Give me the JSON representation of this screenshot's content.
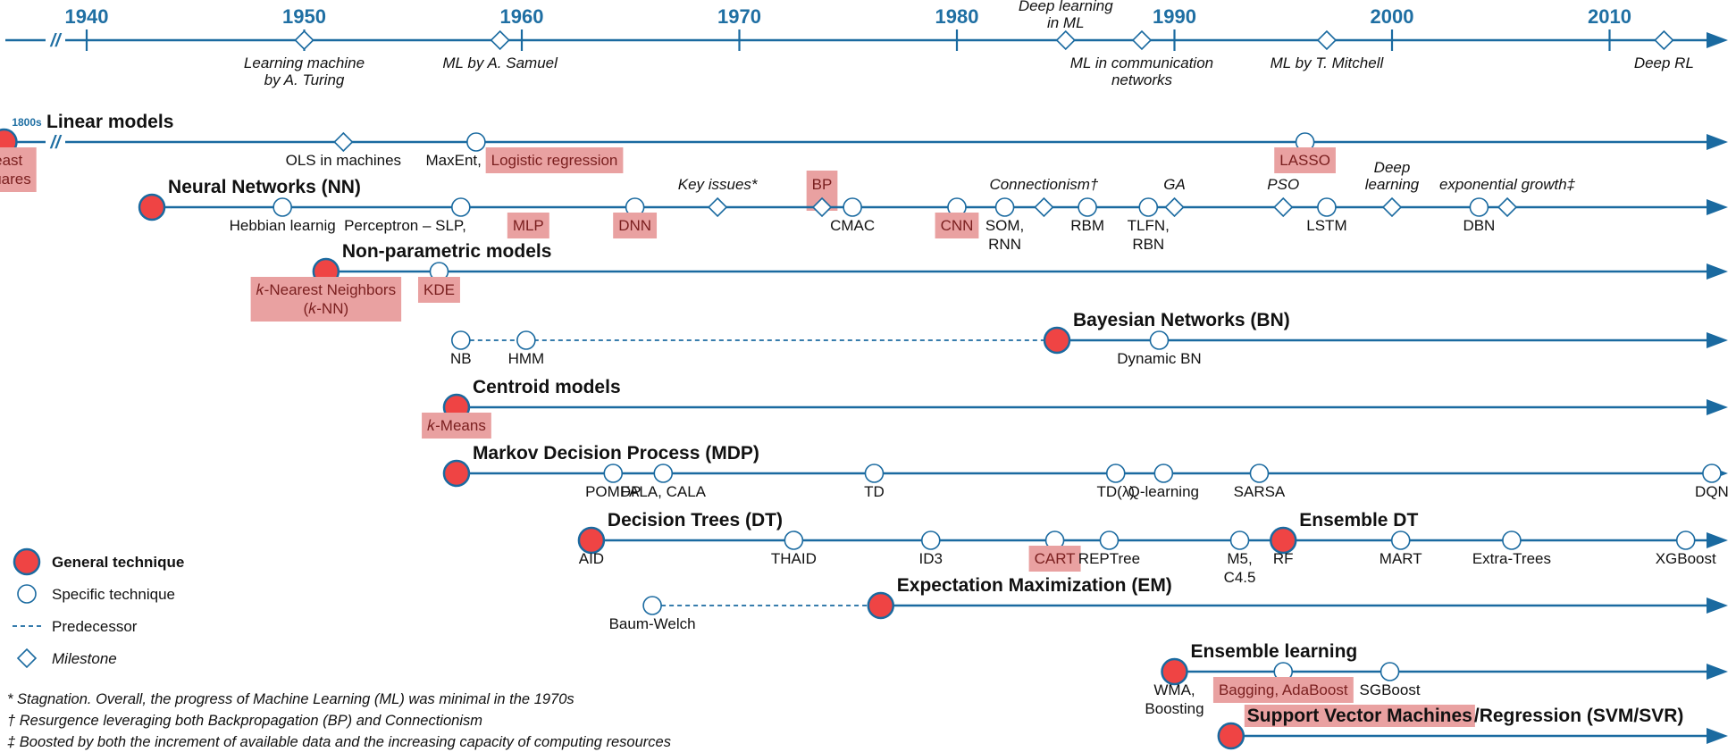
{
  "colors": {
    "axis": "#1a6aa0",
    "year_text": "#1f6fa3",
    "general_fill": "#ef4444",
    "highlight_fill": "#e9a1a1",
    "highlight_text": "#7a1f1f"
  },
  "top_axis": {
    "years": [
      "1940",
      "1950",
      "1960",
      "1970",
      "1980",
      "1990",
      "2000",
      "2010"
    ],
    "break_mark": "//",
    "milestones": [
      {
        "year": 1950.0,
        "text": [
          "Learning machine",
          "by A. Turing"
        ],
        "pos": "below"
      },
      {
        "year": 1959.0,
        "text": [
          "ML by A. Samuel"
        ],
        "pos": "below"
      },
      {
        "year": 1985.0,
        "text": [
          "Deep learning",
          "in ML"
        ],
        "pos": "above"
      },
      {
        "year": 1988.5,
        "text": [
          "ML in communication",
          "networks"
        ],
        "pos": "below"
      },
      {
        "year": 1997.0,
        "text": [
          "ML by T. Mitchell"
        ],
        "pos": "below"
      },
      {
        "year": 2012.5,
        "text": [
          "Deep RL"
        ],
        "pos": "below"
      }
    ]
  },
  "rows": [
    {
      "title": "Linear models",
      "prefix": "1800s",
      "break_mark": "//",
      "start_year": 1936.2,
      "general_year": 1936.2,
      "items": [
        {
          "kind": "general",
          "year": 1936.2,
          "text": [
            "Least",
            "squares"
          ],
          "pos": "below",
          "hl": true
        },
        {
          "kind": "milestone",
          "year": 1951.8,
          "text": [
            "OLS in machines"
          ],
          "pos": "below"
        },
        {
          "kind": "specific",
          "year": 1957.9,
          "text": [
            "MaxEnt,"
          ],
          "pos": "below-left"
        },
        {
          "kind": "label",
          "year": 1961.5,
          "text": [
            "Logistic regression"
          ],
          "pos": "below",
          "hl": true
        },
        {
          "kind": "specific",
          "year": 1996.0,
          "text": [
            "LASSO"
          ],
          "pos": "below",
          "hl": true
        }
      ]
    },
    {
      "title": "Neural Networks (NN)",
      "start_year": 1943.0,
      "items": [
        {
          "kind": "general",
          "year": 1943.0
        },
        {
          "kind": "specific",
          "year": 1949.0,
          "text": [
            "Hebbian learnig"
          ],
          "pos": "below"
        },
        {
          "kind": "specific",
          "year": 1957.2,
          "text": [
            "Perceptron – SLP,"
          ],
          "pos": "below-left"
        },
        {
          "kind": "label",
          "year": 1960.3,
          "text": [
            "MLP"
          ],
          "pos": "below",
          "hl": true
        },
        {
          "kind": "specific",
          "year": 1965.2,
          "text": [
            "DNN"
          ],
          "pos": "below",
          "hl": true
        },
        {
          "kind": "milestone",
          "year": 1969.0,
          "text": [
            "Key issues*"
          ],
          "pos": "above"
        },
        {
          "kind": "milestone",
          "year": 1973.8,
          "text": [
            "BP"
          ],
          "pos": "above",
          "hl": true
        },
        {
          "kind": "specific",
          "year": 1975.2,
          "text": [
            "CMAC"
          ],
          "pos": "below"
        },
        {
          "kind": "specific",
          "year": 1980.0,
          "text": [
            "CNN"
          ],
          "pos": "below",
          "hl": true
        },
        {
          "kind": "specific",
          "year": 1982.2,
          "text": [
            "SOM,",
            "RNN"
          ],
          "pos": "below"
        },
        {
          "kind": "milestone",
          "year": 1984.0,
          "text": [
            "Connectionism†"
          ],
          "pos": "above"
        },
        {
          "kind": "specific",
          "year": 1986.0,
          "text": [
            "RBM"
          ],
          "pos": "below"
        },
        {
          "kind": "specific",
          "year": 1988.8,
          "text": [
            "TLFN,",
            "RBN"
          ],
          "pos": "below"
        },
        {
          "kind": "milestone",
          "year": 1990.0,
          "text": [
            "GA"
          ],
          "pos": "above"
        },
        {
          "kind": "milestone",
          "year": 1995.0,
          "text": [
            "PSO"
          ],
          "pos": "above"
        },
        {
          "kind": "specific",
          "year": 1997.0,
          "text": [
            "LSTM"
          ],
          "pos": "below"
        },
        {
          "kind": "milestone",
          "year": 2000.0,
          "text": [
            "Deep",
            "learning"
          ],
          "pos": "above"
        },
        {
          "kind": "specific",
          "year": 2004.0,
          "text": [
            "DBN"
          ],
          "pos": "below"
        },
        {
          "kind": "milestone",
          "year": 2005.3,
          "text": [
            "exponential growth‡"
          ],
          "pos": "above"
        }
      ]
    },
    {
      "title": "Non-parametric models",
      "start_year": 1951.0,
      "items": [
        {
          "kind": "general",
          "year": 1951.0,
          "text": [
            "𝑘-Nearest Neighbors",
            "(𝑘-NN)"
          ],
          "pos": "below",
          "hl": true
        },
        {
          "kind": "specific",
          "year": 1956.2,
          "text": [
            "KDE"
          ],
          "pos": "below",
          "hl": true
        }
      ]
    },
    {
      "title": "Bayesian Networks (BN)",
      "start_year": 1984.6,
      "items": [
        {
          "kind": "specific",
          "year": 1957.2,
          "text": [
            "NB"
          ],
          "pos": "below"
        },
        {
          "kind": "specific",
          "year": 1960.2,
          "text": [
            "HMM"
          ],
          "pos": "below"
        },
        {
          "kind": "general",
          "year": 1984.6
        },
        {
          "kind": "specific",
          "year": 1989.3,
          "text": [
            "Dynamic BN"
          ],
          "pos": "below"
        }
      ],
      "dashed": [
        1957.2,
        1984.6
      ]
    },
    {
      "title": "Centroid models",
      "start_year": 1957.0,
      "items": [
        {
          "kind": "general",
          "year": 1957.0,
          "text": [
            "𝑘-Means"
          ],
          "pos": "below",
          "hl": true
        }
      ]
    },
    {
      "title": "Markov Decision Process (MDP)",
      "start_year": 1957.0,
      "items": [
        {
          "kind": "general",
          "year": 1957.0
        },
        {
          "kind": "specific",
          "year": 1964.2,
          "text": [
            "POMDP"
          ],
          "pos": "below"
        },
        {
          "kind": "specific",
          "year": 1966.5,
          "text": [
            "FALA, CALA"
          ],
          "pos": "below"
        },
        {
          "kind": "specific",
          "year": 1976.2,
          "text": [
            "TD"
          ],
          "pos": "below"
        },
        {
          "kind": "specific",
          "year": 1987.3,
          "text": [
            "TD(λ)"
          ],
          "pos": "below"
        },
        {
          "kind": "specific",
          "year": 1989.5,
          "text": [
            "Q-learning"
          ],
          "pos": "below"
        },
        {
          "kind": "specific",
          "year": 1993.9,
          "text": [
            "SARSA"
          ],
          "pos": "below"
        },
        {
          "kind": "specific",
          "year": 2014.7,
          "text": [
            "DQN"
          ],
          "pos": "below"
        }
      ]
    },
    {
      "title": "Decision Trees (DT)",
      "title2": "Ensemble DT",
      "start_year": 1963.2,
      "items": [
        {
          "kind": "general",
          "year": 1963.2,
          "text": [
            "AID"
          ],
          "pos": "below"
        },
        {
          "kind": "specific",
          "year": 1972.5,
          "text": [
            "THAID"
          ],
          "pos": "below"
        },
        {
          "kind": "specific",
          "year": 1978.8,
          "text": [
            "ID3"
          ],
          "pos": "below"
        },
        {
          "kind": "specific",
          "year": 1984.5,
          "text": [
            "CART"
          ],
          "pos": "below",
          "hl": true
        },
        {
          "kind": "specific",
          "year": 1987.0,
          "text": [
            "REPTree"
          ],
          "pos": "below"
        },
        {
          "kind": "specific",
          "year": 1993.0,
          "text": [
            "M5,",
            "C4.5"
          ],
          "pos": "below"
        },
        {
          "kind": "general",
          "year": 1995.0,
          "text": [
            "RF"
          ],
          "pos": "below"
        },
        {
          "kind": "specific",
          "year": 2000.4,
          "text": [
            "MART"
          ],
          "pos": "below"
        },
        {
          "kind": "specific",
          "year": 2005.5,
          "text": [
            "Extra-Trees"
          ],
          "pos": "below"
        },
        {
          "kind": "specific",
          "year": 2013.5,
          "text": [
            "XGBoost"
          ],
          "pos": "below"
        }
      ]
    },
    {
      "title": "Expectation Maximization (EM)",
      "start_year": 1976.5,
      "items": [
        {
          "kind": "specific",
          "year": 1966.0,
          "text": [
            "Baum-Welch"
          ],
          "pos": "below"
        },
        {
          "kind": "general",
          "year": 1976.5
        }
      ],
      "dashed": [
        1966.0,
        1976.5
      ]
    },
    {
      "title": "Ensemble learning",
      "start_year": 1990.0,
      "items": [
        {
          "kind": "general",
          "year": 1990.0,
          "text": [
            "WMA,",
            "Boosting"
          ],
          "pos": "below"
        },
        {
          "kind": "specific",
          "year": 1995.0,
          "text": [
            "Bagging, AdaBoost"
          ],
          "pos": "below",
          "hl": true
        },
        {
          "kind": "specific",
          "year": 1999.9,
          "text": [
            "SGBoost"
          ],
          "pos": "below"
        }
      ]
    },
    {
      "title": "Support Vector Machines",
      "title_suffix": "/Regression (SVM/SVR)",
      "start_year": 1992.6,
      "items": [
        {
          "kind": "general",
          "year": 1992.6
        }
      ]
    }
  ],
  "legend": [
    {
      "kind": "general",
      "text": "General technique"
    },
    {
      "kind": "specific",
      "text": "Specific technique"
    },
    {
      "kind": "dashed",
      "text": "Predecessor"
    },
    {
      "kind": "milestone",
      "text": "Milestone"
    }
  ],
  "notes": [
    "* Stagnation. Overall,  the progress of  Machine Learning (ML) was minimal in the 1970s",
    "† Resurgence leveraging both Backpropagation (BP) and Connectionism",
    "‡ Boosted by both the increment of available data and the increasing capacity of computing  resources"
  ]
}
